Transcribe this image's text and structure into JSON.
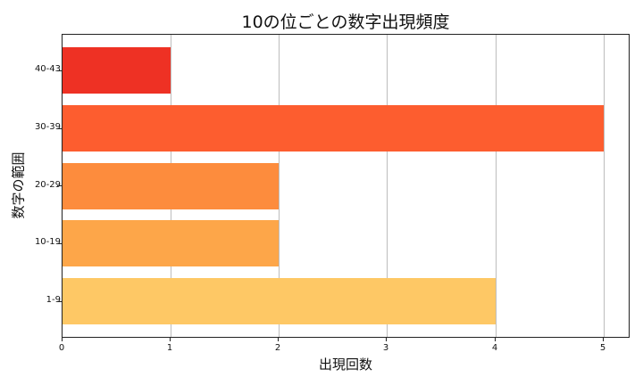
{
  "chart_data": {
    "type": "bar",
    "orientation": "horizontal",
    "title": "10の位ごとの数字出現頻度",
    "xlabel": "出現回数",
    "ylabel": "数字の範囲",
    "categories": [
      "40-43",
      "30-39",
      "20-29",
      "10-19",
      "1-9"
    ],
    "values": [
      1,
      5,
      2,
      2,
      4
    ],
    "colors": [
      "#ee3124",
      "#fd5d2f",
      "#fd8c3d",
      "#fda649",
      "#fec865"
    ],
    "xlim": [
      0,
      5.25
    ],
    "xticks": [
      "0",
      "1",
      "2",
      "3",
      "4",
      "5"
    ],
    "grid": "vertical",
    "legend": "none"
  }
}
